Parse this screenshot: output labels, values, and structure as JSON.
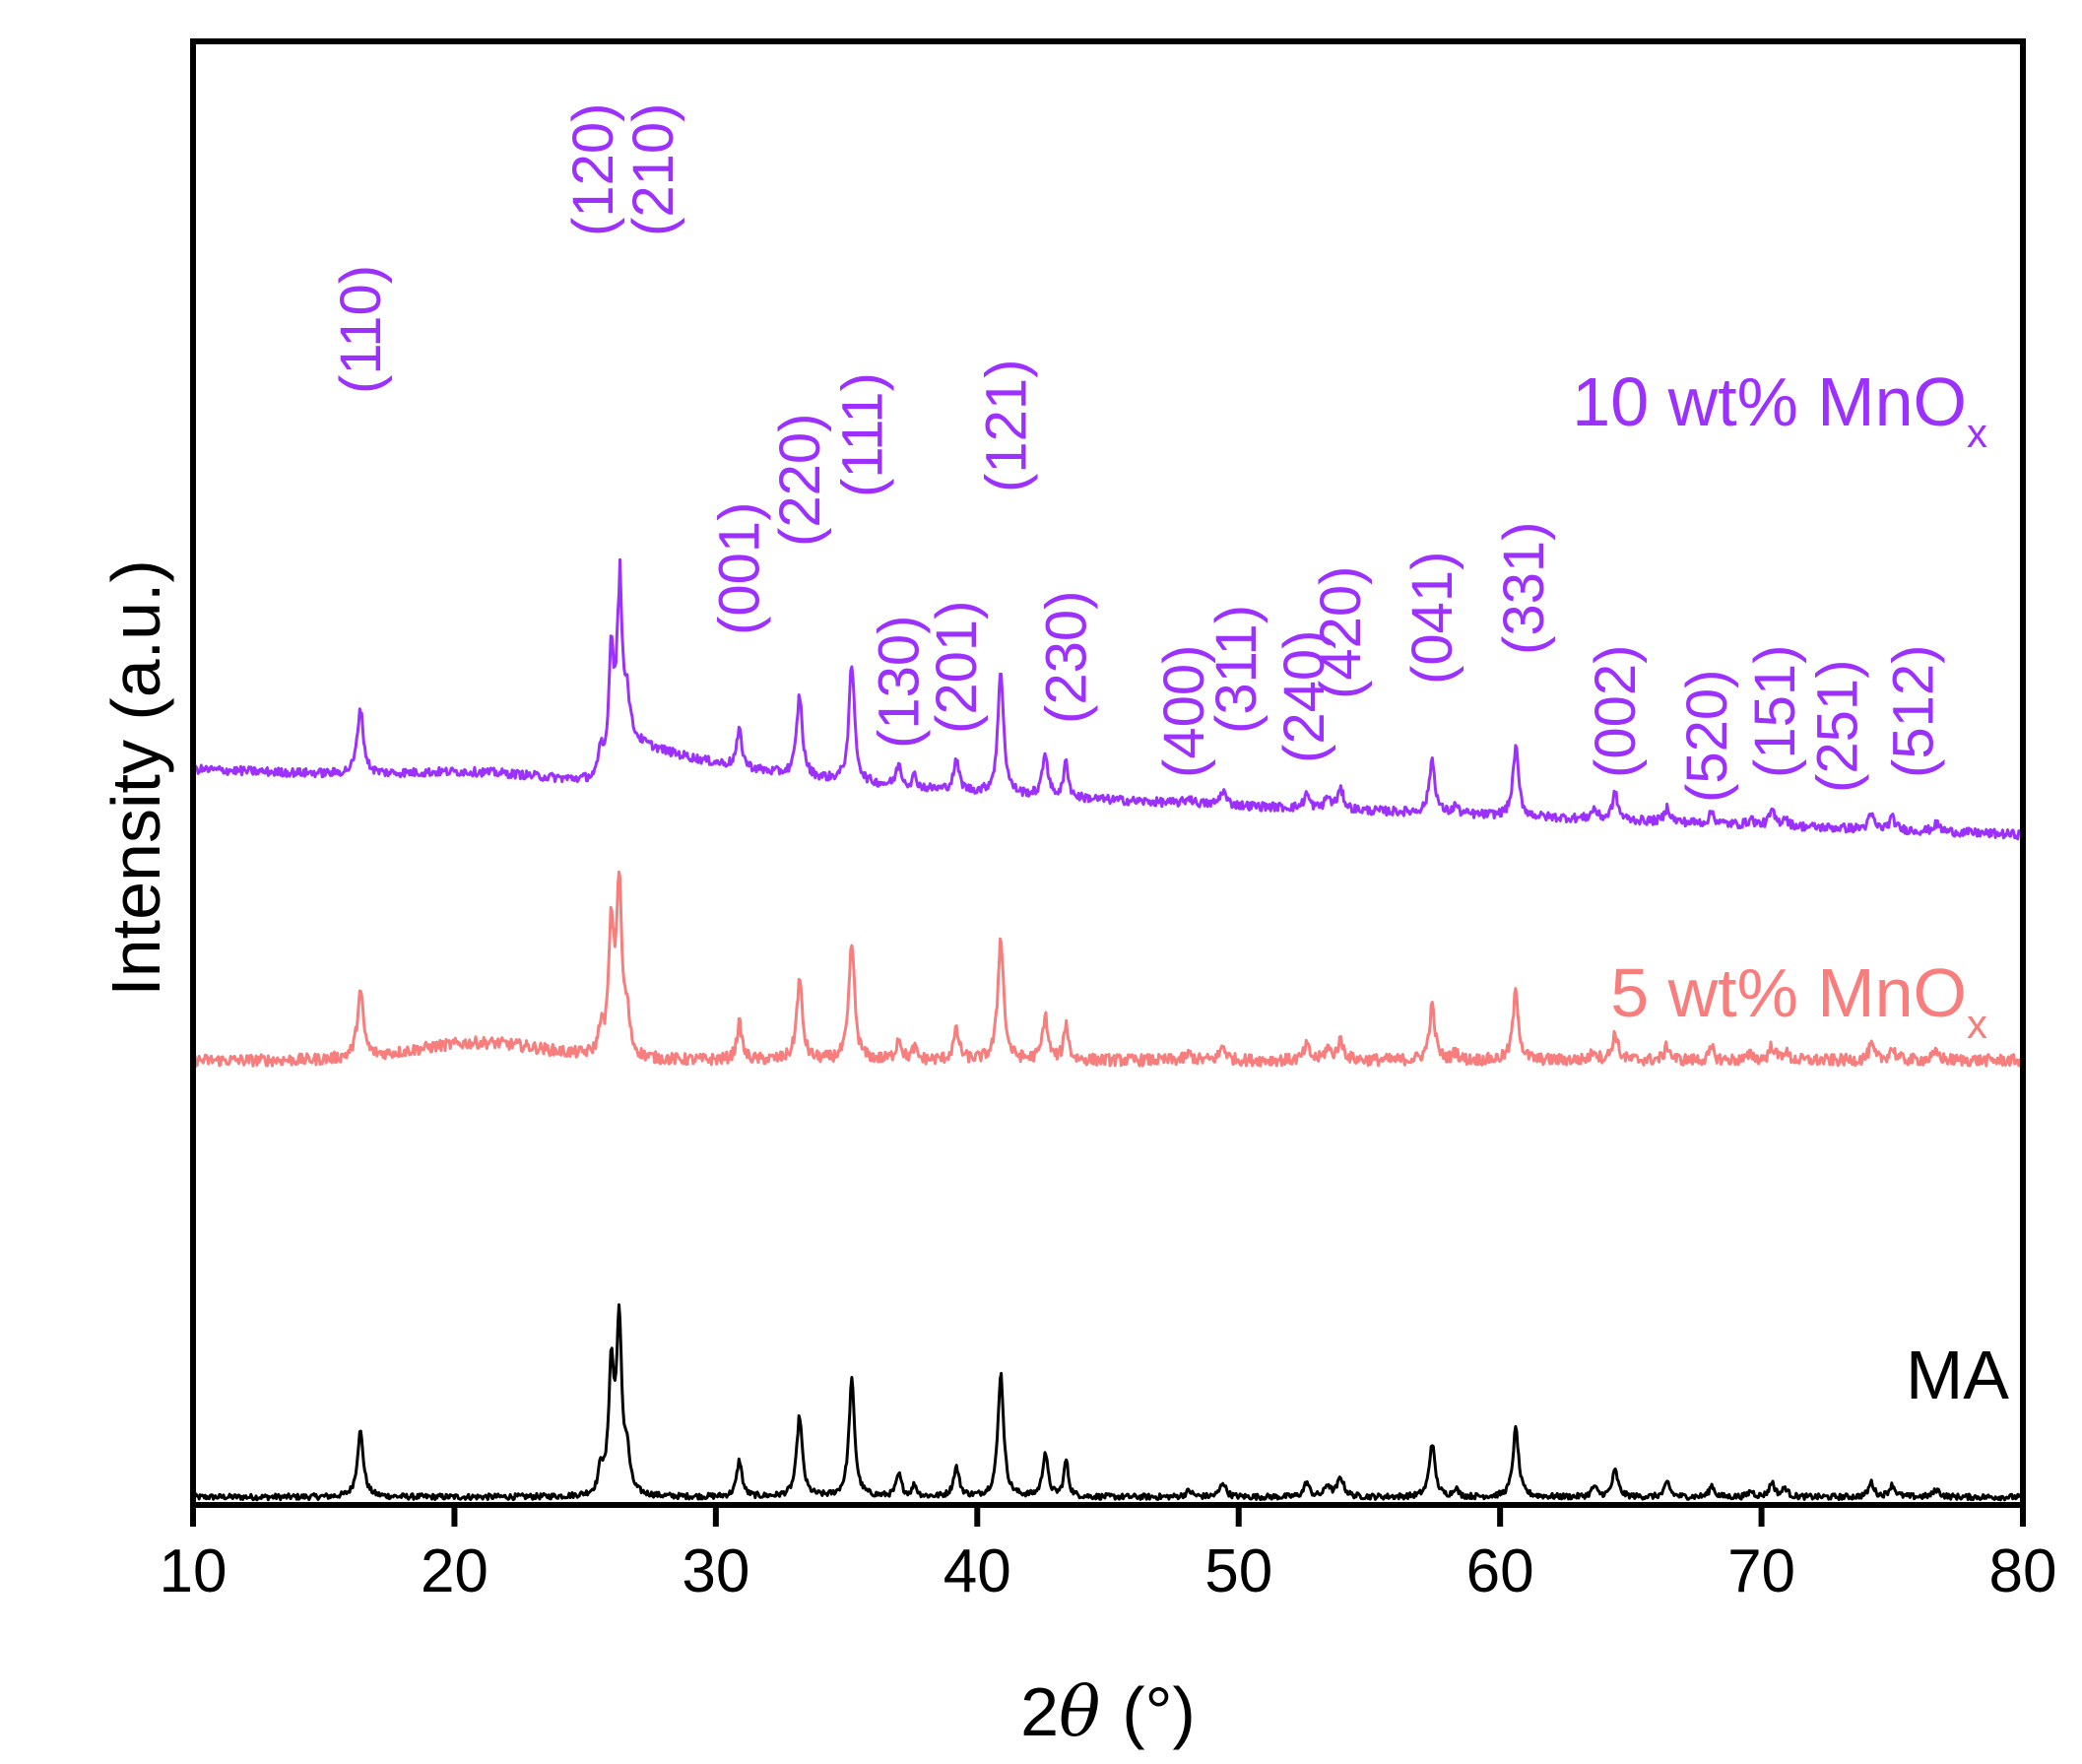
{
  "chart_data": {
    "type": "line",
    "title": "",
    "xlabel_prefix": "2",
    "xlabel_symbol": "θ",
    "xlabel_unit": "(°)",
    "ylabel": "Intensity (a.u.)",
    "xlim": [
      10,
      80
    ],
    "ylim": [
      0,
      1
    ],
    "y_ticks_shown": false,
    "xticks": [
      "10",
      "20",
      "30",
      "40",
      "50",
      "60",
      "70",
      "80"
    ],
    "xtick_values": [
      10,
      20,
      30,
      40,
      50,
      60,
      70,
      80
    ],
    "grid": false,
    "peaks_shared": [
      {
        "x": 16.4,
        "ma": 0.045,
        "w": 0.14
      },
      {
        "x": 25.6,
        "ma": 0.018,
        "w": 0.1
      },
      {
        "x": 26.0,
        "ma": 0.085,
        "w": 0.12
      },
      {
        "x": 26.3,
        "ma": 0.115,
        "w": 0.12
      },
      {
        "x": 26.6,
        "ma": 0.025,
        "w": 0.12
      },
      {
        "x": 30.9,
        "ma": 0.025,
        "w": 0.12
      },
      {
        "x": 33.2,
        "ma": 0.055,
        "w": 0.13
      },
      {
        "x": 35.2,
        "ma": 0.08,
        "w": 0.13
      },
      {
        "x": 37.0,
        "ma": 0.015,
        "w": 0.12
      },
      {
        "x": 37.6,
        "ma": 0.008,
        "w": 0.1
      },
      {
        "x": 39.2,
        "ma": 0.02,
        "w": 0.13
      },
      {
        "x": 40.9,
        "ma": 0.085,
        "w": 0.13
      },
      {
        "x": 42.6,
        "ma": 0.03,
        "w": 0.12
      },
      {
        "x": 43.4,
        "ma": 0.025,
        "w": 0.1
      },
      {
        "x": 48.1,
        "ma": 0.004,
        "w": 0.15
      },
      {
        "x": 49.4,
        "ma": 0.01,
        "w": 0.13
      },
      {
        "x": 52.6,
        "ma": 0.01,
        "w": 0.12
      },
      {
        "x": 53.4,
        "ma": 0.008,
        "w": 0.12
      },
      {
        "x": 53.9,
        "ma": 0.013,
        "w": 0.15
      },
      {
        "x": 57.4,
        "ma": 0.037,
        "w": 0.13
      },
      {
        "x": 58.3,
        "ma": 0.006,
        "w": 0.1
      },
      {
        "x": 60.6,
        "ma": 0.047,
        "w": 0.13
      },
      {
        "x": 63.6,
        "ma": 0.007,
        "w": 0.12
      },
      {
        "x": 64.4,
        "ma": 0.018,
        "w": 0.13
      },
      {
        "x": 66.4,
        "ma": 0.01,
        "w": 0.12
      },
      {
        "x": 68.1,
        "ma": 0.008,
        "w": 0.11
      },
      {
        "x": 69.6,
        "ma": 0.004,
        "w": 0.12
      },
      {
        "x": 70.4,
        "ma": 0.01,
        "w": 0.12
      },
      {
        "x": 70.9,
        "ma": 0.006,
        "w": 0.12
      },
      {
        "x": 74.2,
        "ma": 0.01,
        "w": 0.12
      },
      {
        "x": 75.0,
        "ma": 0.008,
        "w": 0.14
      },
      {
        "x": 76.7,
        "ma": 0.005,
        "w": 0.15
      }
    ],
    "series": [
      {
        "name": "MA",
        "color": "#000000",
        "baseline_start": 0.0,
        "baseline_end": 0.0,
        "hump": 0.0,
        "scale": 1.0,
        "noise": 0.002
      },
      {
        "name": "5 wt% MnO",
        "sub": "x",
        "color": "#f87d7d",
        "baseline_start": 0.3,
        "baseline_end": 0.3,
        "hump": 0.012,
        "scale": 1.0,
        "noise": 0.004
      },
      {
        "name": "10 wt% MnO",
        "sub": "x",
        "color": "#9b30ff",
        "baseline_start": 0.5,
        "baseline_end": 0.455,
        "hump": 0.005,
        "scale": 1.0,
        "noise": 0.003
      }
    ],
    "peak_labels": [
      {
        "text": "(110)",
        "x": 16.4
      },
      {
        "text": "(120)",
        "x": 25.3
      },
      {
        "text": "(210)",
        "x": 27.6
      },
      {
        "text": "(001)",
        "x": 30.9
      },
      {
        "text": "(220)",
        "x": 33.2
      },
      {
        "text": "(111)",
        "x": 35.6
      },
      {
        "text": "(130)",
        "x": 37.0
      },
      {
        "text": "(201)",
        "x": 39.2
      },
      {
        "text": "(121)",
        "x": 41.1
      },
      {
        "text": "(230)",
        "x": 43.4
      },
      {
        "text": "(400)",
        "x": 47.9
      },
      {
        "text": "(311)",
        "x": 49.9
      },
      {
        "text": "(240)",
        "x": 52.5
      },
      {
        "text": "(420)",
        "x": 53.9
      },
      {
        "text": "(041)",
        "x": 57.4
      },
      {
        "text": "(331)",
        "x": 60.9
      },
      {
        "text": "(002)",
        "x": 64.4
      },
      {
        "text": "(520)",
        "x": 67.9
      },
      {
        "text": "(151)",
        "x": 70.5
      },
      {
        "text": "(251)",
        "x": 72.9
      },
      {
        "text": "(512)",
        "x": 75.8
      }
    ]
  }
}
